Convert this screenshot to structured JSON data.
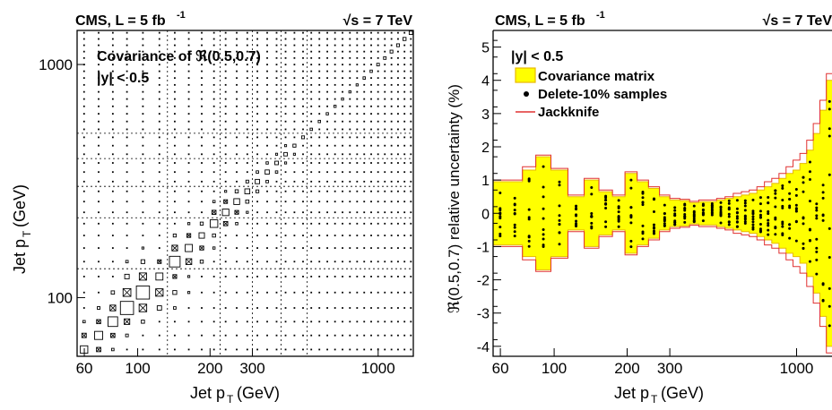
{
  "left_panel": {
    "header_left": "CMS, L = 5 fb",
    "header_left_sup": "-1",
    "header_right": "√s = 7 TeV",
    "title": "Covariance of ℜ(0.5,0.7)",
    "subtitle": "|y| < 0.5",
    "xlabel": "Jet p",
    "xlabel_sub": "T",
    "xlabel_unit": "(GeV)",
    "ylabel": "Jet p",
    "ylabel_sub": "T",
    "ylabel_unit": "(GeV)"
  },
  "right_panel": {
    "header_left": "CMS, L = 5 fb",
    "header_left_sup": "-1",
    "header_right": "√s = 7 TeV",
    "subtitle": "|y| < 0.5",
    "legend": [
      "Covariance matrix",
      "Delete-10% samples",
      "Jackknife"
    ],
    "xlabel": "Jet p",
    "xlabel_sub": "T",
    "xlabel_unit": "(GeV)",
    "ylabel": "ℜ(0.5,0.7) relative uncertainty (%)"
  },
  "colors": {
    "band_fill": "#ffff00",
    "band_edge": "#e8b800",
    "jackknife": "#e03030",
    "grid": "#000000"
  },
  "chart_data": [
    {
      "type": "heatmap",
      "panel": "left",
      "title": "Covariance of ℜ(0.5,0.7)",
      "annotation": "|y| < 0.5",
      "xlabel": "Jet pT (GeV)",
      "ylabel": "Jet pT (GeV)",
      "xscale": "log",
      "yscale": "log",
      "xlim": [
        56,
        1400
      ],
      "ylim": [
        56,
        1400
      ],
      "xticks": [
        60,
        100,
        200,
        300,
        1000
      ],
      "yticks": [
        100,
        1000
      ],
      "grid_lines": [
        133,
        220,
        300,
        395,
        507
      ],
      "bin_edges": [
        56,
        64,
        74,
        84,
        97,
        114,
        133,
        153,
        174,
        196,
        220,
        245,
        272,
        300,
        330,
        362,
        395,
        430,
        468,
        507,
        548,
        592,
        638,
        686,
        737,
        790,
        846,
        905,
        967,
        1032,
        1101,
        1172,
        1248,
        1327,
        1410
      ],
      "diagonal_magnitude": [
        0.55,
        0.55,
        0.75,
        0.9,
        0.8,
        0.45,
        0.75,
        0.55,
        0.45,
        0.65,
        0.6,
        0.55,
        0.5,
        0.45,
        0.45,
        0.4,
        0.4,
        0.35,
        0.35,
        0.3,
        0.3,
        0.3,
        0.3,
        0.3,
        0.3,
        0.3,
        0.35,
        0.35,
        0.4,
        0.4,
        0.45,
        0.45,
        0.5,
        0.55
      ],
      "offdiagonal_sign": "positive and negative entries; crossed boxes mark negative values"
    },
    {
      "type": "area",
      "panel": "right",
      "annotation": "|y| < 0.5",
      "xlabel": "Jet pT (GeV)",
      "ylabel": "ℜ(0.5,0.7) relative uncertainty (%)",
      "xscale": "log",
      "xlim": [
        56,
        1400
      ],
      "ylim": [
        -4.3,
        5.5
      ],
      "xticks": [
        60,
        100,
        200,
        300,
        1000
      ],
      "yticks": [
        -4,
        -3,
        -2,
        -1,
        0,
        1,
        2,
        3,
        4,
        5
      ],
      "legend_position": "top-left",
      "bin_edges": [
        56,
        64,
        74,
        84,
        97,
        114,
        133,
        153,
        174,
        196,
        220,
        245,
        272,
        300,
        330,
        362,
        395,
        430,
        468,
        507,
        548,
        592,
        638,
        686,
        737,
        790,
        846,
        905,
        967,
        1032,
        1101,
        1172,
        1248,
        1327,
        1410
      ],
      "series": [
        {
          "name": "Covariance matrix",
          "values": [
            0.95,
            0.95,
            1.3,
            1.7,
            1.3,
            0.5,
            1.0,
            0.65,
            0.5,
            1.2,
            0.95,
            0.75,
            0.5,
            0.4,
            0.38,
            0.32,
            0.35,
            0.35,
            0.4,
            0.45,
            0.5,
            0.55,
            0.6,
            0.7,
            0.8,
            0.9,
            1.05,
            1.2,
            1.3,
            1.5,
            1.9,
            2.4,
            3.1,
            4.0
          ]
        },
        {
          "name": "Jackknife",
          "values": [
            1.0,
            1.0,
            1.4,
            1.75,
            1.35,
            0.55,
            1.05,
            0.7,
            0.55,
            1.25,
            1.0,
            0.8,
            0.55,
            0.45,
            0.42,
            0.36,
            0.4,
            0.4,
            0.45,
            0.5,
            0.6,
            0.65,
            0.7,
            0.8,
            0.95,
            1.05,
            1.2,
            1.4,
            1.6,
            1.8,
            2.2,
            2.7,
            3.4,
            4.2
          ]
        },
        {
          "name": "Delete-10% samples",
          "values": "scatter of 10 points per bin within the covariance band"
        }
      ]
    }
  ]
}
